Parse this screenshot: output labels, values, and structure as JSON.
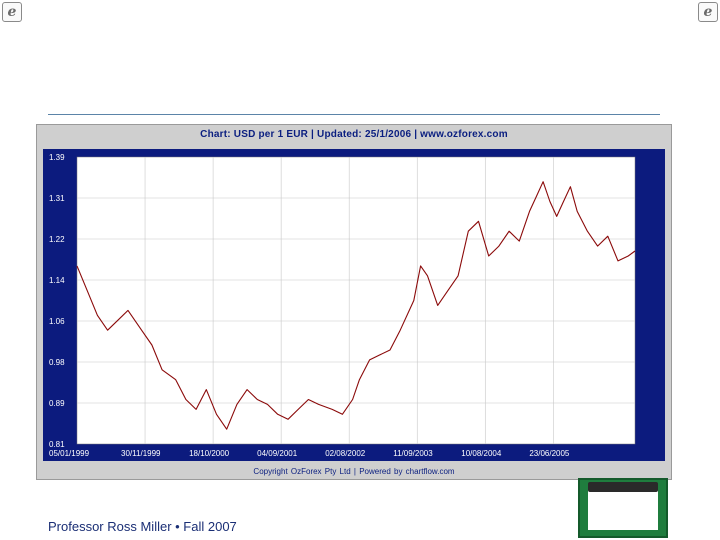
{
  "chart_data": {
    "type": "line",
    "title": "Chart: USD per 1 EUR  |  Updated: 25/1/2006  |  www.ozforex.com",
    "footer": "Copyright OzForex Pty Ltd   |   Powered by chartflow.com",
    "xlabel": "",
    "ylabel": "",
    "ylim": [
      0.81,
      1.39
    ],
    "y_ticks": [
      "1.39",
      "1.31",
      "1.22",
      "1.14",
      "1.06",
      "0.98",
      "0.89",
      "0.81"
    ],
    "x_ticks": [
      "05/01/1999",
      "30/11/1999",
      "18/10/2000",
      "04/09/2001",
      "02/08/2002",
      "11/09/2003",
      "10/08/2004",
      "23/06/2005"
    ],
    "x_ticks_pos": [
      0,
      1,
      2,
      3,
      4,
      5,
      6,
      7
    ],
    "grid": true,
    "legend": "none",
    "series": [
      {
        "x": [
          0,
          0.15,
          0.3,
          0.45,
          0.6,
          0.75,
          0.95,
          1.1,
          1.25,
          1.45,
          1.6,
          1.75,
          1.9,
          2.05,
          2.2,
          2.35,
          2.5,
          2.65,
          2.8,
          2.95,
          3.1,
          3.25,
          3.4,
          3.55,
          3.75,
          3.9,
          4.05,
          4.15,
          4.3,
          4.45,
          4.6,
          4.75,
          4.95,
          5.05,
          5.15,
          5.3,
          5.45,
          5.6,
          5.75,
          5.9,
          6.05,
          6.2,
          6.35,
          6.5,
          6.65,
          6.75,
          6.85,
          6.95,
          7.05,
          7.15,
          7.25,
          7.35,
          7.5,
          7.65,
          7.8,
          7.95,
          8.1,
          8.2
        ],
        "y": [
          1.17,
          1.12,
          1.07,
          1.04,
          1.06,
          1.08,
          1.04,
          1.01,
          0.96,
          0.94,
          0.9,
          0.88,
          0.92,
          0.87,
          0.84,
          0.89,
          0.92,
          0.9,
          0.89,
          0.87,
          0.86,
          0.88,
          0.9,
          0.89,
          0.88,
          0.87,
          0.9,
          0.94,
          0.98,
          0.99,
          1.0,
          1.04,
          1.1,
          1.17,
          1.15,
          1.09,
          1.12,
          1.15,
          1.24,
          1.26,
          1.19,
          1.21,
          1.24,
          1.22,
          1.28,
          1.31,
          1.34,
          1.3,
          1.27,
          1.3,
          1.33,
          1.28,
          1.24,
          1.21,
          1.23,
          1.18,
          1.19,
          1.2
        ],
        "color": "#8b0a0a"
      }
    ],
    "colors": {
      "plot_bg": "#ffffff",
      "outer_bg": "#cfcfcf",
      "axis_bg": "#0c1b7e",
      "text_on_axis": "#ffffff",
      "title": "#0a1e80",
      "line": "#8b0a0a"
    }
  },
  "caption": "Professor Ross Miller • Fall 2007",
  "icons": {
    "left": "e-icon",
    "right": "e-icon"
  }
}
